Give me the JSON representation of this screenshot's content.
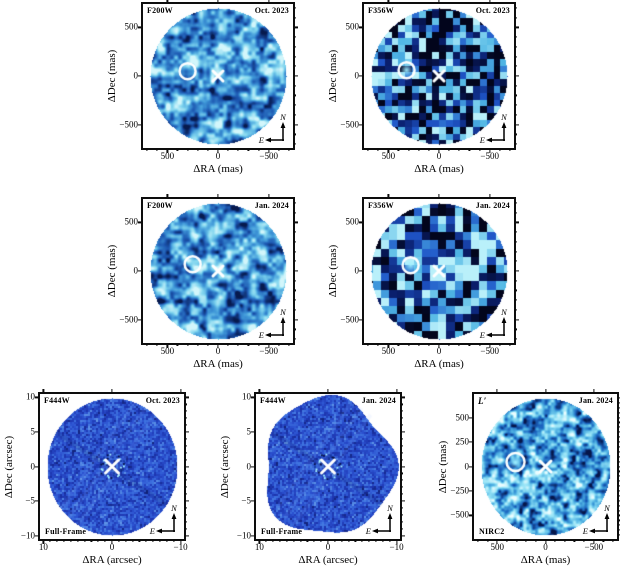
{
  "figure": {
    "background_color": "#ffffff",
    "frame_color": "#0d0d0d",
    "marker_color": "#ffffff"
  },
  "palettes": {
    "f200w": [
      "#071a4e",
      "#1c56b0",
      "#3f97d8",
      "#7fd4ee",
      "#d2f6fb"
    ],
    "f356w": [
      "#02051c",
      "#0a1f6e",
      "#1f55c8",
      "#4fb6e4",
      "#b9f0fa"
    ],
    "f444w": [
      "#0a1650",
      "#1c34ae",
      "#2b51d0",
      "#3f74e0",
      "#7fb4ee"
    ],
    "nirc2": [
      "#06164a",
      "#1b63be",
      "#49abe0",
      "#93e2f6",
      "#eafdff"
    ]
  },
  "panels": [
    {
      "filter_label": "F200W",
      "epoch_label": "Oct. 2023",
      "corner_label": "",
      "xlabel": "ΔRA (mas)",
      "ylabel": "ΔDec (mas)",
      "x_tick_labels": [
        "500",
        "0",
        "−500"
      ],
      "x_tick_values": [
        500,
        0,
        -500
      ],
      "y_tick_labels": [
        "500",
        "0",
        "−500"
      ],
      "y_tick_values": [
        500,
        0,
        -500
      ],
      "axis_half_range": 740,
      "minor_step_x": 100,
      "minor_step_y": 100,
      "compass": {
        "north_label": "N",
        "east_label": "E"
      },
      "markers": {
        "star": {
          "x": 0,
          "y": 0
        },
        "companion": {
          "x": 300,
          "y": 50
        }
      },
      "style": {
        "noise": "smooth",
        "cell": 8.5,
        "seed": 11,
        "palette": "f200w",
        "contrast": 1.55,
        "bias": 0.04,
        "shape": "ellipse",
        "blob": false,
        "ring_r": 8,
        "cross_l": 5
      }
    },
    {
      "filter_label": "F356W",
      "epoch_label": "Oct. 2023",
      "corner_label": "",
      "xlabel": "ΔRA (mas)",
      "ylabel": "ΔDec (mas)",
      "x_tick_labels": [
        "500",
        "0",
        "−500"
      ],
      "x_tick_values": [
        500,
        0,
        -500
      ],
      "y_tick_labels": [
        "500",
        "0",
        "−500"
      ],
      "y_tick_values": [
        500,
        0,
        -500
      ],
      "axis_half_range": 740,
      "minor_step_x": 100,
      "minor_step_y": 100,
      "compass": {
        "north_label": "N",
        "east_label": "E"
      },
      "markers": {
        "star": {
          "x": 0,
          "y": 0
        },
        "companion": {
          "x": 320,
          "y": 60
        }
      },
      "style": {
        "noise": "pixel",
        "cell": 6.8,
        "seed": 22,
        "palette": "f356w",
        "contrast": 1.9,
        "bias": -0.04,
        "shape": "ellipse",
        "blob": true,
        "ring_r": 8,
        "cross_l": 5
      }
    },
    {
      "filter_label": "F200W",
      "epoch_label": "Jan. 2024",
      "corner_label": "",
      "xlabel": "ΔRA (mas)",
      "ylabel": "ΔDec (mas)",
      "x_tick_labels": [
        "500",
        "0",
        "−500"
      ],
      "x_tick_values": [
        500,
        0,
        -500
      ],
      "y_tick_labels": [
        "500",
        "0",
        "−500"
      ],
      "y_tick_values": [
        500,
        0,
        -500
      ],
      "axis_half_range": 740,
      "minor_step_x": 100,
      "minor_step_y": 100,
      "compass": {
        "north_label": "N",
        "east_label": "E"
      },
      "markers": {
        "star": {
          "x": 0,
          "y": 0
        },
        "companion": {
          "x": 250,
          "y": 70
        }
      },
      "style": {
        "noise": "smooth",
        "cell": 8.5,
        "seed": 43,
        "palette": "f200w",
        "contrast": 1.6,
        "bias": 0.02,
        "shape": "ellipse",
        "blob": false,
        "ring_r": 8,
        "cross_l": 5
      }
    },
    {
      "filter_label": "F356W",
      "epoch_label": "Jan. 2024",
      "corner_label": "",
      "xlabel": "ΔRA (mas)",
      "ylabel": "ΔDec (mas)",
      "x_tick_labels": [
        "500",
        "0",
        "−500"
      ],
      "x_tick_values": [
        500,
        0,
        -500
      ],
      "y_tick_labels": [
        "500",
        "0",
        "−500"
      ],
      "y_tick_values": [
        500,
        0,
        -500
      ],
      "axis_half_range": 740,
      "minor_step_x": 100,
      "minor_step_y": 100,
      "compass": {
        "north_label": "N",
        "east_label": "E"
      },
      "markers": {
        "star": {
          "x": 0,
          "y": 0
        },
        "companion": {
          "x": 280,
          "y": 60
        }
      },
      "style": {
        "noise": "pixel",
        "cell": 8.2,
        "seed": 54,
        "palette": "f356w",
        "contrast": 1.95,
        "bias": -0.06,
        "shape": "ellipse",
        "blob": true,
        "ring_r": 8,
        "cross_l": 5
      }
    },
    {
      "filter_label": "F444W",
      "epoch_label": "Oct. 2023",
      "corner_label": "Full-Frame",
      "xlabel": "ΔRA (arcsec)",
      "ylabel": "ΔDec (arcsec)",
      "x_tick_labels": [
        "10",
        "0",
        "−10"
      ],
      "x_tick_values": [
        10,
        0,
        -10
      ],
      "y_tick_labels": [
        "10",
        "5",
        "0",
        "−5",
        "−10"
      ],
      "y_tick_values": [
        10,
        5,
        0,
        -5,
        -10
      ],
      "axis_half_range": 10.5,
      "minor_step_x": 1,
      "minor_step_y": 1,
      "compass": {
        "north_label": "N",
        "east_label": "E"
      },
      "markers": {
        "star": {
          "x": 0,
          "y": 0
        },
        "companion": null
      },
      "style": {
        "noise": "pixel",
        "cell": 2,
        "seed": 65,
        "palette": "f444w",
        "contrast": 0.8,
        "bias": 0,
        "shape": "ellipse",
        "speckles": true,
        "streaks": true,
        "cross_l": 6.5
      }
    },
    {
      "filter_label": "F444W",
      "epoch_label": "Jan. 2024",
      "corner_label": "Full-Frame",
      "xlabel": "ΔRA (arcsec)",
      "ylabel": "ΔDec (arcsec)",
      "x_tick_labels": [
        "10",
        "0",
        "−10"
      ],
      "x_tick_values": [
        10,
        0,
        -10
      ],
      "y_tick_labels": [
        "10",
        "5",
        "0",
        "−5",
        "−10"
      ],
      "y_tick_values": [
        10,
        5,
        0,
        -5,
        -10
      ],
      "axis_half_range": 10.5,
      "minor_step_x": 1,
      "minor_step_y": 1,
      "compass": {
        "north_label": "N",
        "east_label": "E"
      },
      "markers": {
        "star": {
          "x": 0,
          "y": 0
        },
        "companion": null
      },
      "style": {
        "noise": "pixel",
        "cell": 2,
        "seed": 76,
        "palette": "f444w",
        "contrast": 0.8,
        "bias": 0,
        "shape": "blobby",
        "speckles": true,
        "streaks": true,
        "cross_l": 6.5
      }
    },
    {
      "filter_label": "L′",
      "epoch_label": "Jan. 2024",
      "corner_label": "NIRC2",
      "xlabel": "ΔRA (mas)",
      "ylabel": "ΔDec (mas)",
      "x_tick_labels": [
        "500",
        "0",
        "−500"
      ],
      "x_tick_values": [
        500,
        0,
        -500
      ],
      "y_tick_labels": [
        "500",
        "250",
        "0",
        "−250",
        "−500"
      ],
      "y_tick_values": [
        500,
        250,
        0,
        -250,
        -500
      ],
      "axis_half_range": 740,
      "minor_step_x": 100,
      "minor_step_y": 50,
      "compass": {
        "north_label": "N",
        "east_label": "E"
      },
      "markers": {
        "star": {
          "x": 0,
          "y": 0
        },
        "companion": {
          "x": 310,
          "y": 45
        }
      },
      "style": {
        "noise": "smooth",
        "cell": 6.5,
        "seed": 87,
        "palette": "nirc2",
        "contrast": 1.5,
        "bias": -0.02,
        "shape": "ellipse",
        "blob": true,
        "ring_r": 9,
        "cross_l": 5.5
      }
    }
  ],
  "chart_data": [
    {
      "type": "heatmap",
      "filter": "F200W",
      "epoch": "Oct. 2023",
      "xlabel": "ΔRA (mas)",
      "ylabel": "ΔDec (mas)",
      "x_ticks": [
        500,
        0,
        -500
      ],
      "y_ticks": [
        500,
        0,
        -500
      ],
      "x_range": [
        740,
        -740
      ],
      "y_range": [
        -740,
        740
      ],
      "markers": {
        "star_mas": [
          0,
          0
        ],
        "companion_circle_mas": [
          300,
          50
        ]
      },
      "compass": [
        "N",
        "E"
      ]
    },
    {
      "type": "heatmap",
      "filter": "F356W",
      "epoch": "Oct. 2023",
      "xlabel": "ΔRA (mas)",
      "ylabel": "ΔDec (mas)",
      "x_ticks": [
        500,
        0,
        -500
      ],
      "y_ticks": [
        500,
        0,
        -500
      ],
      "x_range": [
        740,
        -740
      ],
      "y_range": [
        -740,
        740
      ],
      "markers": {
        "star_mas": [
          0,
          0
        ],
        "companion_circle_mas": [
          320,
          60
        ]
      },
      "compass": [
        "N",
        "E"
      ]
    },
    {
      "type": "heatmap",
      "filter": "F200W",
      "epoch": "Jan. 2024",
      "xlabel": "ΔRA (mas)",
      "ylabel": "ΔDec (mas)",
      "x_ticks": [
        500,
        0,
        -500
      ],
      "y_ticks": [
        500,
        0,
        -500
      ],
      "x_range": [
        740,
        -740
      ],
      "y_range": [
        -740,
        740
      ],
      "markers": {
        "star_mas": [
          0,
          0
        ],
        "companion_circle_mas": [
          250,
          70
        ]
      },
      "compass": [
        "N",
        "E"
      ]
    },
    {
      "type": "heatmap",
      "filter": "F356W",
      "epoch": "Jan. 2024",
      "xlabel": "ΔRA (mas)",
      "ylabel": "ΔDec (mas)",
      "x_ticks": [
        500,
        0,
        -500
      ],
      "y_ticks": [
        500,
        0,
        -500
      ],
      "x_range": [
        740,
        -740
      ],
      "y_range": [
        -740,
        740
      ],
      "markers": {
        "star_mas": [
          0,
          0
        ],
        "companion_circle_mas": [
          280,
          60
        ]
      },
      "compass": [
        "N",
        "E"
      ]
    },
    {
      "type": "heatmap",
      "filter": "F444W",
      "epoch": "Oct. 2023",
      "mode": "Full-Frame",
      "xlabel": "ΔRA (arcsec)",
      "ylabel": "ΔDec (arcsec)",
      "x_ticks": [
        10,
        0,
        -10
      ],
      "y_ticks": [
        10,
        5,
        0,
        -5,
        -10
      ],
      "x_range": [
        10.5,
        -10.5
      ],
      "y_range": [
        -10.5,
        10.5
      ],
      "markers": {
        "star_arcsec": [
          0,
          0
        ]
      },
      "compass": [
        "N",
        "E"
      ]
    },
    {
      "type": "heatmap",
      "filter": "F444W",
      "epoch": "Jan. 2024",
      "mode": "Full-Frame",
      "xlabel": "ΔRA (arcsec)",
      "ylabel": "ΔDec (arcsec)",
      "x_ticks": [
        10,
        0,
        -10
      ],
      "y_ticks": [
        10,
        5,
        0,
        -5,
        -10
      ],
      "x_range": [
        10.5,
        -10.5
      ],
      "y_range": [
        -10.5,
        10.5
      ],
      "markers": {
        "star_arcsec": [
          0,
          0
        ]
      },
      "compass": [
        "N",
        "E"
      ]
    },
    {
      "type": "heatmap",
      "filter": "L′",
      "epoch": "Jan. 2024",
      "instrument": "NIRC2",
      "xlabel": "ΔRA (mas)",
      "ylabel": "ΔDec (mas)",
      "x_ticks": [
        500,
        0,
        -500
      ],
      "y_ticks": [
        500,
        250,
        0,
        -250,
        -500
      ],
      "x_range": [
        740,
        -740
      ],
      "y_range": [
        -740,
        740
      ],
      "markers": {
        "star_mas": [
          0,
          0
        ],
        "companion_circle_mas": [
          310,
          45
        ]
      },
      "compass": [
        "N",
        "E"
      ]
    }
  ]
}
